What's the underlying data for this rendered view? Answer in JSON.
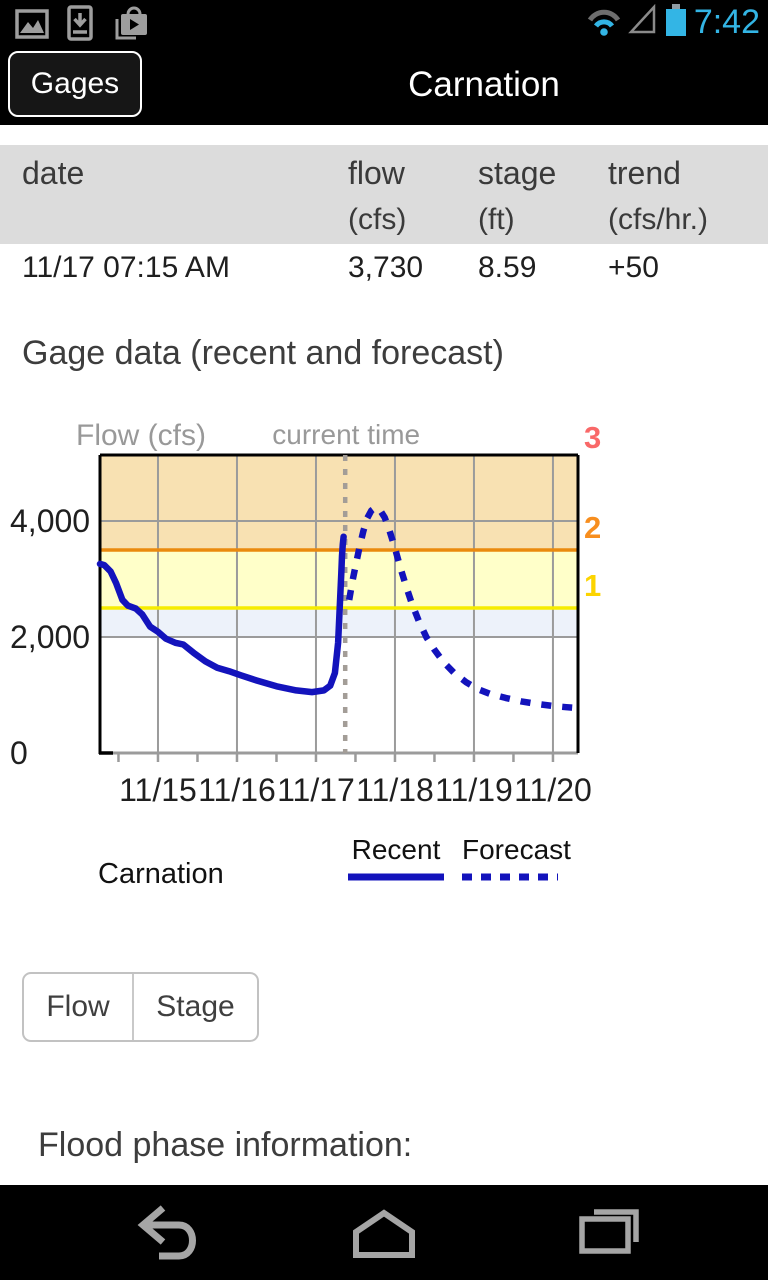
{
  "status_bar": {
    "time": "7:42",
    "notification_icons": [
      "gallery-icon",
      "download-icon",
      "play-store-icon"
    ],
    "system_icons": [
      "wifi-icon",
      "signal-strength-icon",
      "battery-icon"
    ],
    "accent_color": "#33b5e5"
  },
  "action_bar": {
    "back_button_label": "Gages",
    "title": "Carnation"
  },
  "table": {
    "columns": [
      {
        "label": "date",
        "unit": ""
      },
      {
        "label": "flow",
        "unit": "(cfs)"
      },
      {
        "label": "stage",
        "unit": "(ft)"
      },
      {
        "label": "trend",
        "unit": "(cfs/hr.)"
      }
    ],
    "rows": [
      [
        "11/17 07:15 AM",
        "3,730",
        "8.59",
        "+50"
      ]
    ]
  },
  "section_heading": "Gage data (recent and forecast)",
  "chart_data": {
    "type": "line",
    "title": "Gage data (recent and forecast)",
    "ylabel": "Flow (cfs)",
    "xlim": [
      14.266,
      20.317
    ],
    "ylim": [
      0,
      5138
    ],
    "grid": true,
    "x_ticks": [
      {
        "x": 15,
        "label": "11/15"
      },
      {
        "x": 16,
        "label": "11/16"
      },
      {
        "x": 17,
        "label": "11/17"
      },
      {
        "x": 18,
        "label": "11/18"
      },
      {
        "x": 19,
        "label": "11/19"
      },
      {
        "x": 20,
        "label": "11/20"
      }
    ],
    "x_minor_tick_interval": 0.5,
    "y_ticks": [
      {
        "y": 0,
        "label": "0"
      },
      {
        "y": 2000,
        "label": "2,000"
      },
      {
        "y": 4000,
        "label": "4,000"
      }
    ],
    "current_time": {
      "x": 17.37,
      "label": "current time",
      "line_color": "#a39d97",
      "label_color": "#999999"
    },
    "bands": [
      {
        "from": 3500,
        "to": 5138,
        "color": "#f8e1b2"
      },
      {
        "from": 2500,
        "to": 3500,
        "color": "#ffffc9"
      },
      {
        "from": 2000,
        "to": 2500,
        "color": "#edf2fa"
      }
    ],
    "flood_phases": [
      {
        "label": "1",
        "threshold": 2500,
        "line_color": "#f6ec00",
        "label_color": "#fcd400"
      },
      {
        "label": "2",
        "threshold": 3500,
        "line_color": "#ea8a0e",
        "label_color": "#f78e1e"
      },
      {
        "label": "3",
        "threshold": 5138,
        "line_color": null,
        "label_color": "#f96868"
      }
    ],
    "legend_position": "below",
    "series": [
      {
        "name": "Recent",
        "style": "solid",
        "color": "#1313bc",
        "points": [
          [
            14.266,
            3260
          ],
          [
            14.32,
            3240
          ],
          [
            14.4,
            3130
          ],
          [
            14.47,
            2930
          ],
          [
            14.55,
            2640
          ],
          [
            14.62,
            2540
          ],
          [
            14.72,
            2490
          ],
          [
            14.8,
            2390
          ],
          [
            14.9,
            2180
          ],
          [
            15.0,
            2090
          ],
          [
            15.1,
            1970
          ],
          [
            15.22,
            1900
          ],
          [
            15.32,
            1870
          ],
          [
            15.45,
            1730
          ],
          [
            15.6,
            1580
          ],
          [
            15.75,
            1470
          ],
          [
            15.9,
            1410
          ],
          [
            16.05,
            1340
          ],
          [
            16.25,
            1250
          ],
          [
            16.5,
            1150
          ],
          [
            16.75,
            1080
          ],
          [
            16.95,
            1050
          ],
          [
            17.1,
            1080
          ],
          [
            17.18,
            1160
          ],
          [
            17.24,
            1380
          ],
          [
            17.28,
            1900
          ],
          [
            17.3,
            2500
          ],
          [
            17.32,
            3100
          ],
          [
            17.33,
            3400
          ],
          [
            17.34,
            3600
          ],
          [
            17.35,
            3730
          ]
        ]
      },
      {
        "name": "Forecast",
        "style": "dashed",
        "color": "#1313bc",
        "points": [
          [
            17.42,
            2640
          ],
          [
            17.46,
            2950
          ],
          [
            17.5,
            3220
          ],
          [
            17.55,
            3540
          ],
          [
            17.6,
            3830
          ],
          [
            17.65,
            4050
          ],
          [
            17.7,
            4180
          ],
          [
            17.75,
            4230
          ],
          [
            17.81,
            4190
          ],
          [
            17.87,
            4060
          ],
          [
            17.93,
            3840
          ],
          [
            18.0,
            3530
          ],
          [
            18.07,
            3190
          ],
          [
            18.14,
            2880
          ],
          [
            18.21,
            2590
          ],
          [
            18.3,
            2280
          ],
          [
            18.4,
            1990
          ],
          [
            18.5,
            1780
          ],
          [
            18.62,
            1560
          ],
          [
            18.75,
            1380
          ],
          [
            18.9,
            1220
          ],
          [
            19.05,
            1100
          ],
          [
            19.2,
            1020
          ],
          [
            19.4,
            950
          ],
          [
            19.6,
            890
          ],
          [
            19.8,
            845
          ],
          [
            20.0,
            810
          ],
          [
            20.17,
            790
          ],
          [
            20.317,
            775
          ]
        ]
      }
    ]
  },
  "legend": {
    "station": "Carnation",
    "recent_label": "Recent",
    "forecast_label": "Forecast"
  },
  "toggle": {
    "flow_label": "Flow",
    "stage_label": "Stage"
  },
  "flood_heading": "Flood phase information:"
}
